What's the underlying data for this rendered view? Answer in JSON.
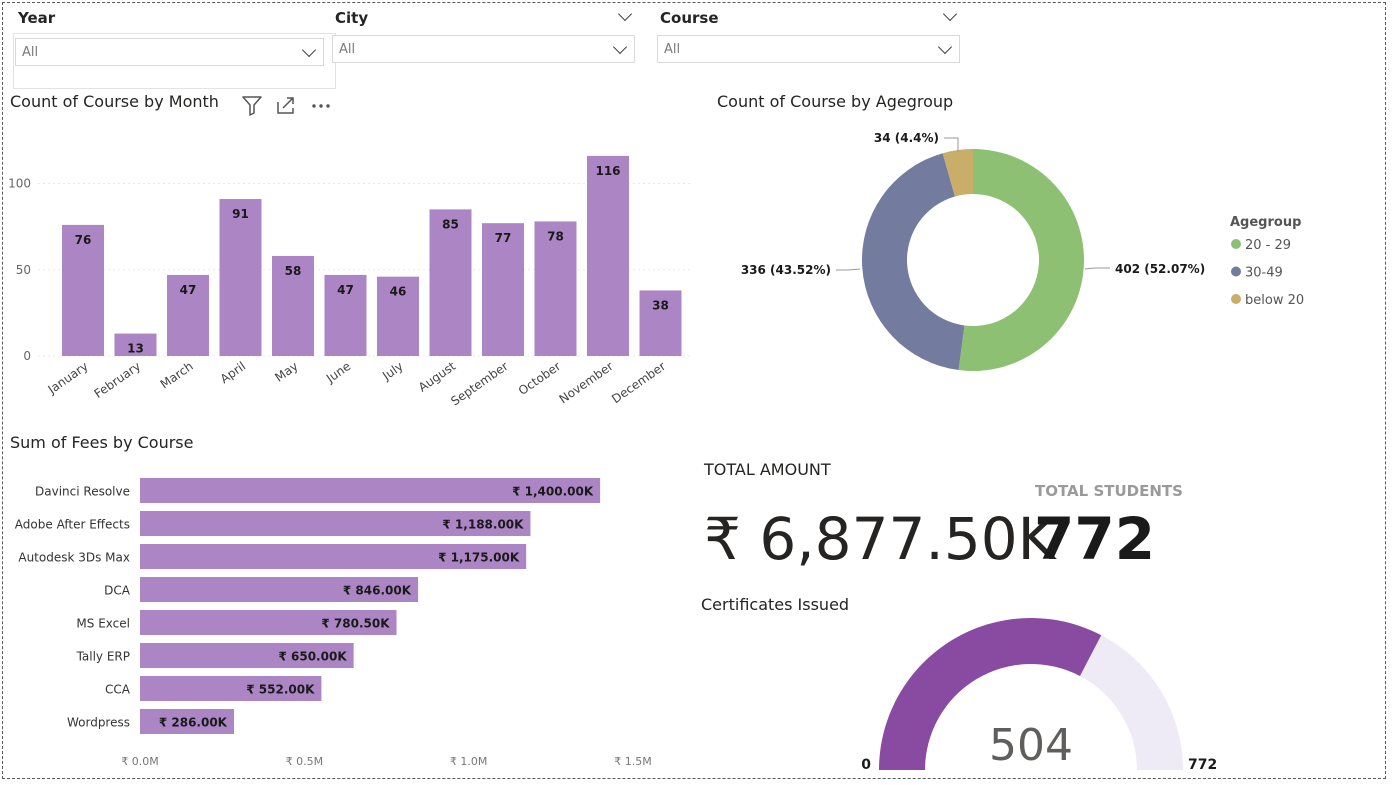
{
  "slicers": [
    {
      "title": "Year",
      "value": "All"
    },
    {
      "title": "City",
      "value": "All"
    },
    {
      "title": "Course",
      "value": "All"
    }
  ],
  "month_chart": {
    "title": "Count of Course by Month",
    "icons": [
      "filter-icon",
      "focus-mode-icon",
      "more-options-icon"
    ]
  },
  "agegroup_chart": {
    "title": "Count of Course by Agegroup"
  },
  "fees_chart": {
    "title": "Sum of Fees by Course"
  },
  "kpis": {
    "total_amount_label": "TOTAL AMOUNT",
    "total_amount_value": "₹ 6,877.50K",
    "total_students_label": "TOTAL STUDENTS",
    "total_students_value": "772"
  },
  "gauge": {
    "title": "Certificates Issued",
    "value": 504,
    "value_label": "504",
    "min": 0,
    "max": 772,
    "min_label": "0",
    "max_label": "772"
  },
  "colors": {
    "bar": "#AC86C4",
    "gauge_fill": "#884BA1",
    "gauge_track": "#EEEAF6",
    "age_20_29": "#8DC072",
    "age_30_49": "#737B9F",
    "age_below_20": "#C9AE6A"
  },
  "chart_data": [
    {
      "type": "bar",
      "title": "Count of Course by Month",
      "categories": [
        "January",
        "February",
        "March",
        "April",
        "May",
        "June",
        "July",
        "August",
        "September",
        "October",
        "November",
        "December"
      ],
      "values": [
        76,
        13,
        47,
        91,
        58,
        47,
        46,
        85,
        77,
        78,
        116,
        38
      ],
      "data_labels": [
        "76",
        "13",
        "47",
        "91",
        "58",
        "47",
        "46",
        "85",
        "77",
        "78",
        "116",
        "38"
      ],
      "ylim": [
        0,
        120
      ],
      "yticks": [
        0,
        50,
        100
      ],
      "ytick_labels": [
        "0",
        "50",
        "100"
      ],
      "grid": true
    },
    {
      "type": "pie",
      "title": "Count of Course by Agegroup",
      "legend_title": "Agegroup",
      "legend_position": "right",
      "labels": [
        "20 - 29",
        "30-49",
        "below 20"
      ],
      "values": [
        402,
        336,
        34
      ],
      "data_labels": [
        "402 (52.07%)",
        "336 (43.52%)",
        "34 (4.4%)"
      ],
      "colors": [
        "#8DC072",
        "#737B9F",
        "#C9AE6A"
      ]
    },
    {
      "type": "bar",
      "orientation": "horizontal",
      "title": "Sum of Fees by Course",
      "categories": [
        "Davinci Resolve",
        "Adobe After Effects",
        "Autodesk 3Ds Max",
        "DCA",
        "MS Excel",
        "Tally ERP",
        "CCA",
        "Wordpress"
      ],
      "values": [
        1400000,
        1188000,
        1175000,
        846000,
        780500,
        650000,
        552000,
        286000
      ],
      "data_labels": [
        "₹ 1,400.00K",
        "₹ 1,188.00K",
        "₹ 1,175.00K",
        "₹ 846.00K",
        "₹ 780.50K",
        "₹ 650.00K",
        "₹ 552.00K",
        "₹ 286.00K"
      ],
      "xlim": [
        0,
        1500000
      ],
      "xticks": [
        0,
        500000,
        1000000,
        1500000
      ],
      "xtick_labels": [
        "₹ 0.0M",
        "₹ 0.5M",
        "₹ 1.0M",
        "₹ 1.5M"
      ]
    }
  ]
}
